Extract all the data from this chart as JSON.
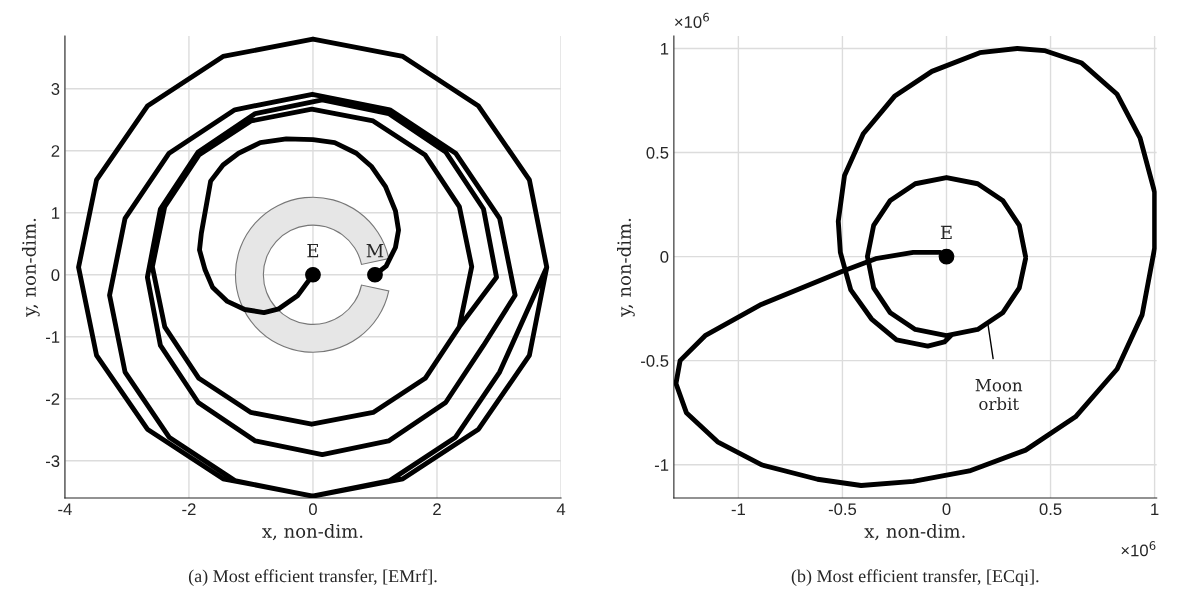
{
  "chart_data": [
    {
      "type": "line",
      "title": "(a) Most efficient transfer, [EMrf].",
      "xlabel": "x, non-dim.",
      "ylabel": "y, non-dim.",
      "xlim": [
        -4,
        4
      ],
      "ylim": [
        -3.6,
        3.85
      ],
      "xticks": [
        -4,
        -2,
        0,
        2,
        4
      ],
      "yticks": [
        -3,
        -2,
        -1,
        0,
        1,
        2,
        3
      ],
      "grid": true,
      "annotations": [
        {
          "text": "E",
          "x": 0,
          "y": 0
        },
        {
          "text": "M",
          "x": 1,
          "y": 0
        }
      ],
      "series": [
        {
          "color": "#000000",
          "x": [
            0,
            -0.25,
            -0.55,
            -0.79,
            -1.1,
            -1.38,
            -1.62,
            -1.74,
            -1.83,
            -1.8,
            -1.65,
            -1.45,
            -1.2,
            -0.85,
            -0.43,
            0.0,
            0.35,
            0.7,
            0.94,
            1.17,
            1.33,
            1.38,
            1.33,
            1.18,
            1.0
          ],
          "values": [
            0,
            -0.34,
            -0.55,
            -0.61,
            -0.56,
            -0.43,
            -0.2,
            0.08,
            0.4,
            0.67,
            1.51,
            1.77,
            1.96,
            2.13,
            2.19,
            2.18,
            2.13,
            1.96,
            1.75,
            1.42,
            1.03,
            0.72,
            0.44,
            0.14,
            0
          ]
        },
        {
          "color": "#000000",
          "x": [
            2.36,
            2.56,
            2.36,
            1.81,
            0.97,
            -0.02,
            -1.0,
            -1.84,
            -2.39,
            -2.59,
            -2.39,
            -1.84,
            -1.0,
            -0.02,
            0.97,
            1.81,
            2.36,
            2.96,
            2.75,
            2.14,
            1.22,
            0.15,
            -0.93,
            -1.85,
            -2.46,
            -2.67,
            -2.46,
            -1.85,
            -0.93,
            0.15,
            1.22,
            2.14,
            2.75,
            3.26,
            3.01,
            2.3,
            1.24,
            -0.01,
            -1.26,
            -2.32,
            -3.03,
            -3.28,
            -3.03,
            -2.32,
            -1.26,
            -0.01,
            1.24,
            2.3,
            3.01,
            3.77,
            3.49,
            2.67,
            1.45,
            0,
            -1.45,
            -2.67,
            -3.49,
            -3.78,
            -3.49,
            -2.67,
            -1.45,
            0,
            1.45,
            2.67,
            3.49,
            3.77
          ],
          "values": [
            -0.84,
            0.13,
            1.1,
            1.93,
            2.48,
            2.67,
            2.48,
            1.93,
            1.1,
            0.13,
            -0.84,
            -1.67,
            -2.22,
            -2.41,
            -2.22,
            -1.67,
            -0.84,
            -0.04,
            1.06,
            1.98,
            2.6,
            2.82,
            2.6,
            1.98,
            1.06,
            -0.04,
            -1.14,
            -2.06,
            -2.68,
            -2.9,
            -2.68,
            -2.06,
            -1.14,
            -0.33,
            0.91,
            1.96,
            2.66,
            2.91,
            2.66,
            1.96,
            0.91,
            -0.33,
            -1.57,
            -2.62,
            -3.32,
            -3.57,
            -3.32,
            -2.62,
            -1.57,
            0.12,
            1.53,
            2.72,
            3.52,
            3.8,
            3.52,
            2.72,
            1.53,
            0.12,
            -1.3,
            -2.49,
            -3.29,
            -3.57,
            -3.29,
            -2.49,
            -1.3,
            0.12
          ]
        },
        {
          "type": "scatter",
          "marker": "circle",
          "color": "#000000",
          "x": [
            0,
            1
          ],
          "values": [
            0,
            0
          ]
        }
      ]
    },
    {
      "type": "line",
      "title": "(b) Most efficient transfer, [ECqi].",
      "xlabel": "x, non-dim.",
      "ylabel": "y, non-dim.",
      "xlim": [
        -1.31,
        1.01
      ],
      "ylim": [
        -1.16,
        1.06
      ],
      "xticks": [
        -1,
        -0.5,
        0,
        0.5,
        1
      ],
      "yticks": [
        -1,
        -0.5,
        0,
        0.5,
        1
      ],
      "grid": true,
      "annotations": [
        "×10$^{6}$",
        "×10$^{6}$",
        {
          "text": "Moon\norbit",
          "x": 0.2,
          "y": -0.33
        },
        {
          "text": "E",
          "x": 0,
          "y": 0
        }
      ],
      "series": [
        {
          "color": "#000000",
          "x": [
            0,
            -0.03,
            -0.16,
            -0.34,
            -0.5,
            -0.89,
            -1.16,
            -1.28,
            -1.3,
            -1.25,
            -1.1,
            -0.89,
            -0.62,
            -0.41,
            -0.16,
            0.11,
            0.38,
            0.62,
            0.82,
            0.94,
            1.0,
            1.0,
            0.93,
            0.82,
            0.65,
            0.47,
            0.34,
            0.16,
            -0.07,
            -0.25,
            -0.4,
            -0.49,
            -0.52,
            -0.51,
            -0.46,
            -0.36,
            -0.24,
            -0.09,
            -0.01,
            0.02
          ],
          "values": [
            0,
            0.02,
            0.02,
            -0.01,
            -0.07,
            -0.23,
            -0.38,
            -0.5,
            -0.61,
            -0.75,
            -0.89,
            -1.0,
            -1.07,
            -1.1,
            -1.08,
            -1.03,
            -0.93,
            -0.77,
            -0.54,
            -0.28,
            0.04,
            0.31,
            0.57,
            0.78,
            0.93,
            0.99,
            1.0,
            0.98,
            0.89,
            0.77,
            0.59,
            0.39,
            0.17,
            0.02,
            -0.16,
            -0.3,
            -0.4,
            -0.43,
            -0.41,
            -0.38
          ]
        },
        {
          "color": "#000000",
          "x": [
            0.38,
            0.35,
            0.27,
            0.15,
            0,
            -0.15,
            -0.27,
            -0.35,
            -0.38,
            -0.35,
            -0.27,
            -0.15,
            0,
            0.15,
            0.27,
            0.35,
            0.38
          ],
          "values": [
            0,
            0.15,
            0.27,
            0.35,
            0.38,
            0.35,
            0.27,
            0.15,
            0,
            -0.15,
            -0.27,
            -0.35,
            -0.38,
            -0.35,
            -0.27,
            -0.15,
            -0.01
          ]
        },
        {
          "type": "scatter",
          "marker": "circle",
          "color": "#000000",
          "x": [
            0
          ],
          "values": [
            0
          ]
        }
      ]
    }
  ]
}
